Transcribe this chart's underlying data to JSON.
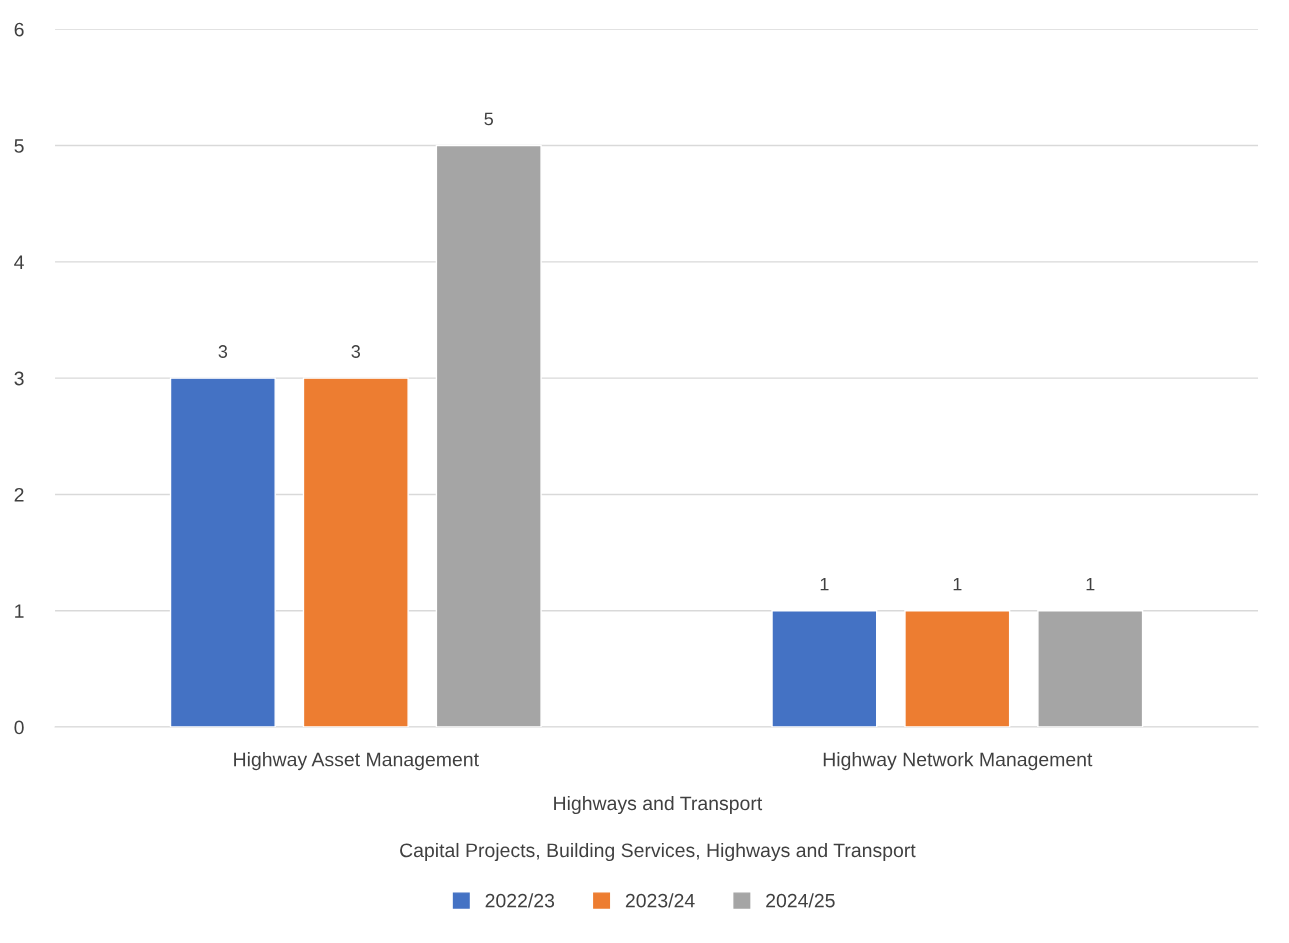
{
  "chart_data": {
    "type": "bar",
    "categories": [
      "Highway Asset Management",
      "Highway Network Management"
    ],
    "series": [
      {
        "name": "2022/23",
        "color": "#4472c4",
        "values": [
          3,
          1
        ]
      },
      {
        "name": "2023/24",
        "color": "#ed7d31",
        "values": [
          3,
          1
        ]
      },
      {
        "name": "2024/25",
        "color": "#a5a5a5",
        "values": [
          5,
          1
        ]
      }
    ],
    "ylim": [
      0,
      6
    ],
    "yticks": [
      0,
      1,
      2,
      3,
      4,
      5,
      6
    ],
    "grid": "y",
    "legend": "bottom",
    "data_labels": true,
    "annotations": [
      "Highways and Transport",
      "Capital Projects, Building Services, Highways and Transport"
    ]
  }
}
